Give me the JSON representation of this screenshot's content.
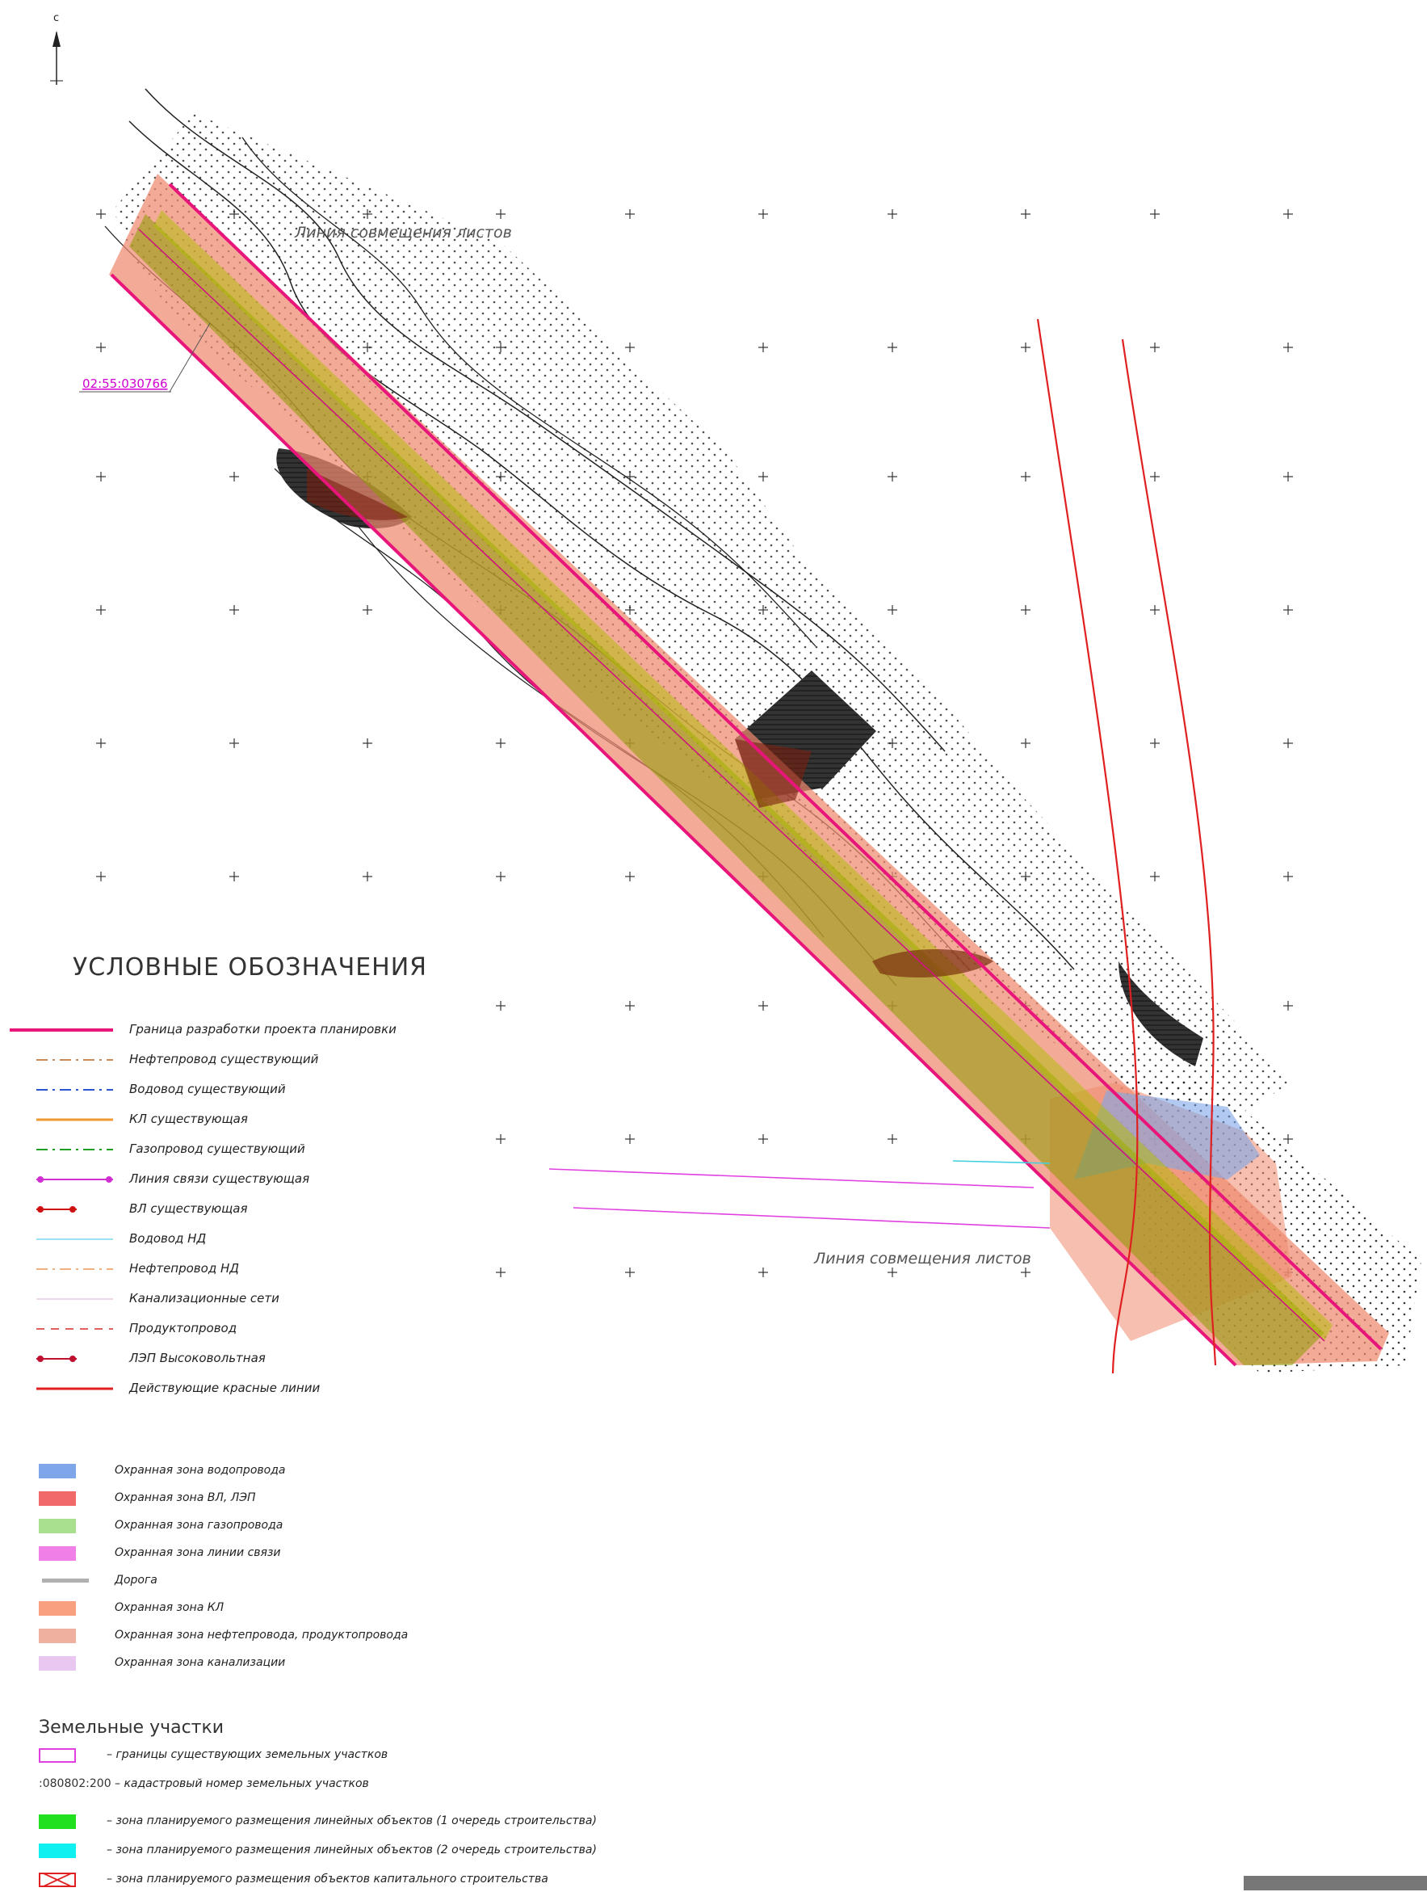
{
  "north_label": "с",
  "map": {
    "sheet_join_label_top": "Линия совмещения листов",
    "sheet_join_label_bottom": "Линия совмещения листов",
    "cadastral_label": "02:55:030766",
    "colors": {
      "corridor_fill": "#ef8a70",
      "gas_zone_fill": "#8c9a00",
      "project_boundary": "#e8157a",
      "red_lines": "#e02020",
      "water_zone": "#7fa6e8",
      "cadastral_text": "#d000d0"
    }
  },
  "legend": {
    "title": "УСЛОВНЫЕ ОБОЗНАЧЕНИЯ",
    "lines": [
      {
        "label": "Граница разработки проекта планировки",
        "color": "#e8157a",
        "style": "solid-thick"
      },
      {
        "label": "Нефтепровод существующий",
        "color": "#c98a5a",
        "style": "dashdot"
      },
      {
        "label": "Водовод существующий",
        "color": "#2a55d0",
        "style": "dashdot"
      },
      {
        "label": "КЛ существующая",
        "color": "#f09a30",
        "style": "solid"
      },
      {
        "label": "Газопровод существующий",
        "color": "#20a020",
        "style": "dashdot"
      },
      {
        "label": "Линия связи существующая",
        "color": "#d030d0",
        "style": "dots"
      },
      {
        "label": "ВЛ существующая",
        "color": "#d01010",
        "style": "dots"
      },
      {
        "label": "Водовод НД",
        "color": "#60d0f0",
        "style": "solid-thin"
      },
      {
        "label": "Нефтепровод НД",
        "color": "#f0b080",
        "style": "dashdot"
      },
      {
        "label": "Канализационные сети",
        "color": "#e8c0e0",
        "style": "solid-thin"
      },
      {
        "label": "Продуктопровод",
        "color": "#e06060",
        "style": "dashed"
      },
      {
        "label": "ЛЭП Высоковольтная",
        "color": "#c01030",
        "style": "dots"
      },
      {
        "label": "Действующие красные линии",
        "color": "#e02020",
        "style": "solid"
      }
    ],
    "zones": [
      {
        "label": "Охранная зона водопровода",
        "color": "#7fa6e8"
      },
      {
        "label": "Охранная зона ВЛ, ЛЭП",
        "color": "#f06a6a"
      },
      {
        "label": "Охранная зона газопровода",
        "color": "#a8e090"
      },
      {
        "label": "Охранная зона линии связи",
        "color": "#f080e8"
      },
      {
        "label": "Дорога",
        "color": "#b0b0b0"
      },
      {
        "label": "Охранная зона КЛ",
        "color": "#f8a080"
      },
      {
        "label": "Охранная зона нефтепровода, продуктопровода",
        "color": "#f0b0a0"
      },
      {
        "label": "Охранная зона канализации",
        "color": "#e8c8f0"
      }
    ]
  },
  "parcels": {
    "title": "Земельные участки",
    "items": [
      {
        "code": "",
        "label": "– границы существующих земельных участков",
        "kind": "outline",
        "color": "#e040e0"
      },
      {
        "code": ":080802:200",
        "label": "– кадастровый номер земельных участков",
        "kind": "text",
        "color": "#333333"
      },
      {
        "code": "",
        "label": "– зона планируемого размещения линейных объектов (1 очередь строительства)",
        "kind": "fill",
        "color": "#20e020"
      },
      {
        "code": "",
        "label": "– зона планируемого размещения линейных объектов (2 очередь строительства)",
        "kind": "fill",
        "color": "#10f0f0"
      },
      {
        "code": "",
        "label": "– зона планируемого размещения объектов капитального строительства",
        "kind": "hatch",
        "color": "#e02020"
      }
    ]
  }
}
